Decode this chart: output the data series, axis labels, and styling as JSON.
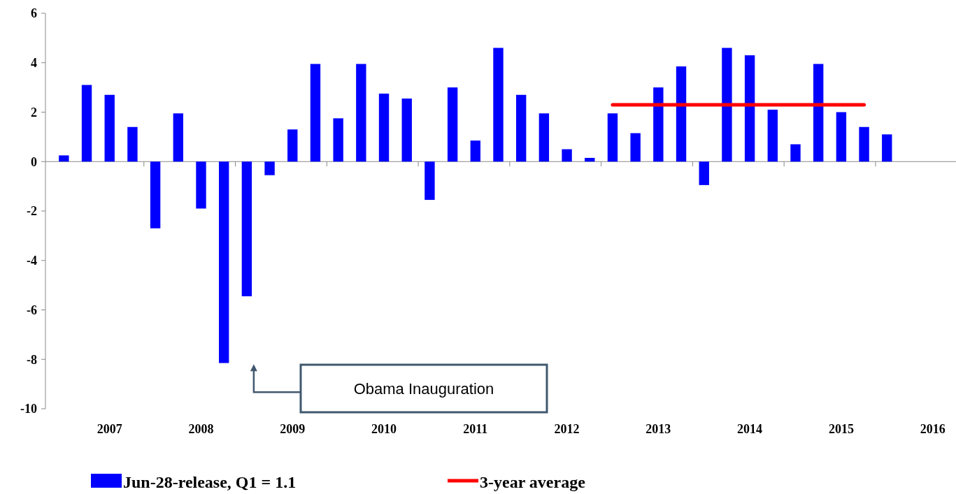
{
  "chart_data": {
    "type": "bar",
    "categories": [
      null,
      null,
      "2007",
      null,
      null,
      null,
      "2008",
      null,
      null,
      null,
      "2009",
      null,
      null,
      null,
      "2010",
      null,
      null,
      null,
      "2011",
      null,
      null,
      null,
      "2012",
      null,
      null,
      null,
      "2013",
      null,
      null,
      null,
      "2014",
      null,
      null,
      null,
      "2015",
      null,
      null,
      null,
      "2016"
    ],
    "series": [
      {
        "name": "Jun-28-release, Q1 = 1.1",
        "color": "#0000ff",
        "values": [
          0.25,
          3.1,
          2.7,
          1.4,
          -2.7,
          1.95,
          -1.9,
          -8.15,
          -5.45,
          -0.55,
          1.3,
          3.95,
          1.75,
          3.95,
          2.75,
          2.55,
          -1.55,
          3.0,
          0.85,
          4.6,
          2.7,
          1.95,
          0.5,
          0.15,
          1.95,
          1.15,
          3.0,
          3.85,
          -0.95,
          4.6,
          4.3,
          2.1,
          0.7,
          3.95,
          2.0,
          1.4,
          1.1,
          null,
          null
        ]
      },
      {
        "name": "3-year average",
        "type": "line",
        "color": "#ff0000",
        "values": [
          null,
          null,
          null,
          null,
          null,
          null,
          null,
          null,
          null,
          null,
          null,
          null,
          null,
          null,
          null,
          null,
          null,
          null,
          null,
          null,
          null,
          null,
          null,
          null,
          2.3,
          2.3,
          2.3,
          2.3,
          2.3,
          2.3,
          2.3,
          2.3,
          2.3,
          2.3,
          2.3,
          2.3,
          null,
          null,
          null
        ]
      }
    ],
    "ylim": [
      -10,
      6
    ],
    "yticks": [
      -10,
      -8,
      -6,
      -4,
      -2,
      0,
      2,
      4,
      6
    ],
    "legend": "bottom",
    "marker": "none",
    "annotations": [
      "Obama Inauguration"
    ]
  }
}
